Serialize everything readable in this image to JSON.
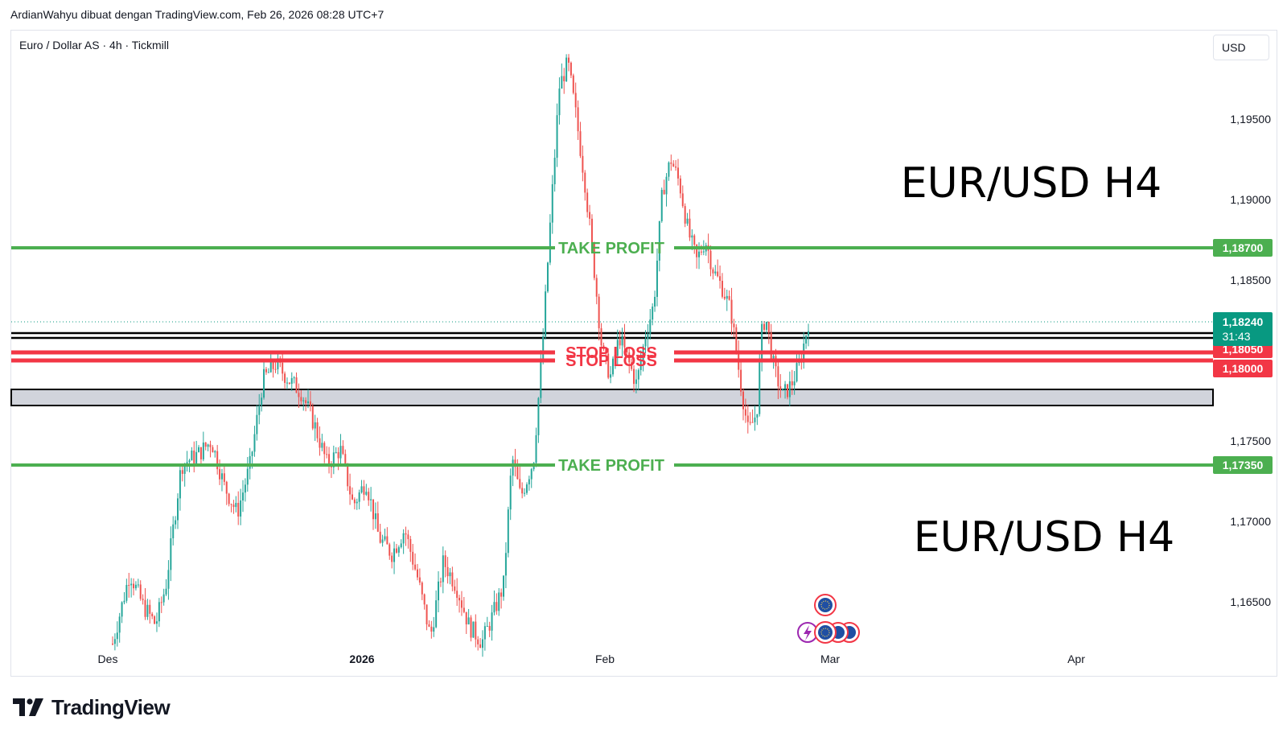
{
  "attribution": "ArdianWahyu dibuat dengan TradingView.com, Feb 26, 2026 08:28 UTC+7",
  "symbol": "Euro / Dollar AS · 4h · Tickmill",
  "currency_button": "USD",
  "logo": {
    "text": "TradingView",
    "icon": "tradingview-logo-icon"
  },
  "colors": {
    "up": "#26a69a",
    "down": "#ef5350",
    "take_profit": "#4caf50",
    "stop_loss": "#f23645",
    "last_price": "#089981",
    "grid_text": "#131722"
  },
  "chart_data": {
    "type": "candlestick",
    "title": "",
    "xlabel": "",
    "ylabel": "",
    "ylim": [
      1.1622,
      1.2005
    ],
    "x_ticks": [
      {
        "label": "Des",
        "bold": false
      },
      {
        "label": "2026",
        "bold": true
      },
      {
        "label": "Feb",
        "bold": false
      },
      {
        "label": "Mar",
        "bold": false
      },
      {
        "label": "Apr",
        "bold": false
      }
    ],
    "y_ticks": [
      "1,19500",
      "1,19000",
      "1,18500",
      "1,17500",
      "1,17000",
      "1,16500"
    ],
    "y_tick_values": [
      1.195,
      1.19,
      1.185,
      1.175,
      1.17,
      1.165
    ],
    "levels": [
      {
        "kind": "take_profit",
        "label": "TAKE PROFIT",
        "price": 1.187,
        "price_label": "1,18700"
      },
      {
        "kind": "stop_loss",
        "label": "STOP LOSS",
        "price": 1.1805,
        "price_label": "1,18050"
      },
      {
        "kind": "stop_loss",
        "label": "STOP LOSS",
        "price": 1.18,
        "price_label": "1,18000"
      },
      {
        "kind": "take_profit",
        "label": "TAKE PROFIT",
        "price": 1.1735,
        "price_label": "1,17350"
      }
    ],
    "zones": [
      {
        "kind": "resistance_lines",
        "from": 1.1814,
        "to": 1.1817
      },
      {
        "kind": "support_zone",
        "from": 1.1772,
        "to": 1.1782
      }
    ],
    "last_price": {
      "value": 1.1824,
      "label": "1,18240",
      "countdown": "31:43"
    },
    "annotations": [
      "EUR/USD H4",
      "EUR/USD H4"
    ],
    "price_path": [
      [
        0.0,
        1.1624
      ],
      [
        0.02,
        1.1668
      ],
      [
        0.035,
        1.1648
      ],
      [
        0.05,
        1.1636
      ],
      [
        0.062,
        1.166
      ],
      [
        0.08,
        1.1735
      ],
      [
        0.1,
        1.1742
      ],
      [
        0.115,
        1.175
      ],
      [
        0.13,
        1.1722
      ],
      [
        0.145,
        1.1705
      ],
      [
        0.16,
        1.1735
      ],
      [
        0.175,
        1.1788
      ],
      [
        0.19,
        1.1798
      ],
      [
        0.205,
        1.1788
      ],
      [
        0.22,
        1.178
      ],
      [
        0.235,
        1.176
      ],
      [
        0.25,
        1.1735
      ],
      [
        0.265,
        1.1745
      ],
      [
        0.28,
        1.171
      ],
      [
        0.295,
        1.1725
      ],
      [
        0.31,
        1.169
      ],
      [
        0.325,
        1.168
      ],
      [
        0.34,
        1.1695
      ],
      [
        0.355,
        1.1665
      ],
      [
        0.37,
        1.1628
      ],
      [
        0.385,
        1.1675
      ],
      [
        0.4,
        1.166
      ],
      [
        0.415,
        1.1635
      ],
      [
        0.43,
        1.1625
      ],
      [
        0.44,
        1.1638
      ],
      [
        0.455,
        1.166
      ],
      [
        0.465,
        1.174
      ],
      [
        0.475,
        1.1715
      ],
      [
        0.49,
        1.1738
      ],
      [
        0.5,
        1.1805
      ],
      [
        0.51,
        1.189
      ],
      [
        0.52,
        1.197
      ],
      [
        0.53,
        1.1985
      ],
      [
        0.54,
        1.195
      ],
      [
        0.55,
        1.191
      ],
      [
        0.56,
        1.186
      ],
      [
        0.57,
        1.1805
      ],
      [
        0.58,
        1.179
      ],
      [
        0.59,
        1.1815
      ],
      [
        0.6,
        1.18
      ],
      [
        0.61,
        1.1785
      ],
      [
        0.62,
        1.1815
      ],
      [
        0.63,
        1.1835
      ],
      [
        0.64,
        1.1905
      ],
      [
        0.65,
        1.1925
      ],
      [
        0.66,
        1.191
      ],
      [
        0.67,
        1.188
      ],
      [
        0.68,
        1.1862
      ],
      [
        0.69,
        1.1875
      ],
      [
        0.7,
        1.1855
      ],
      [
        0.71,
        1.1845
      ],
      [
        0.72,
        1.183
      ],
      [
        0.73,
        1.179
      ],
      [
        0.74,
        1.1755
      ],
      [
        0.75,
        1.1768
      ],
      [
        0.755,
        1.1815
      ],
      [
        0.76,
        1.1828
      ],
      [
        0.77,
        1.1795
      ],
      [
        0.78,
        1.1778
      ],
      [
        0.79,
        1.1785
      ],
      [
        0.8,
        1.1798
      ],
      [
        0.81,
        1.1824
      ]
    ]
  }
}
